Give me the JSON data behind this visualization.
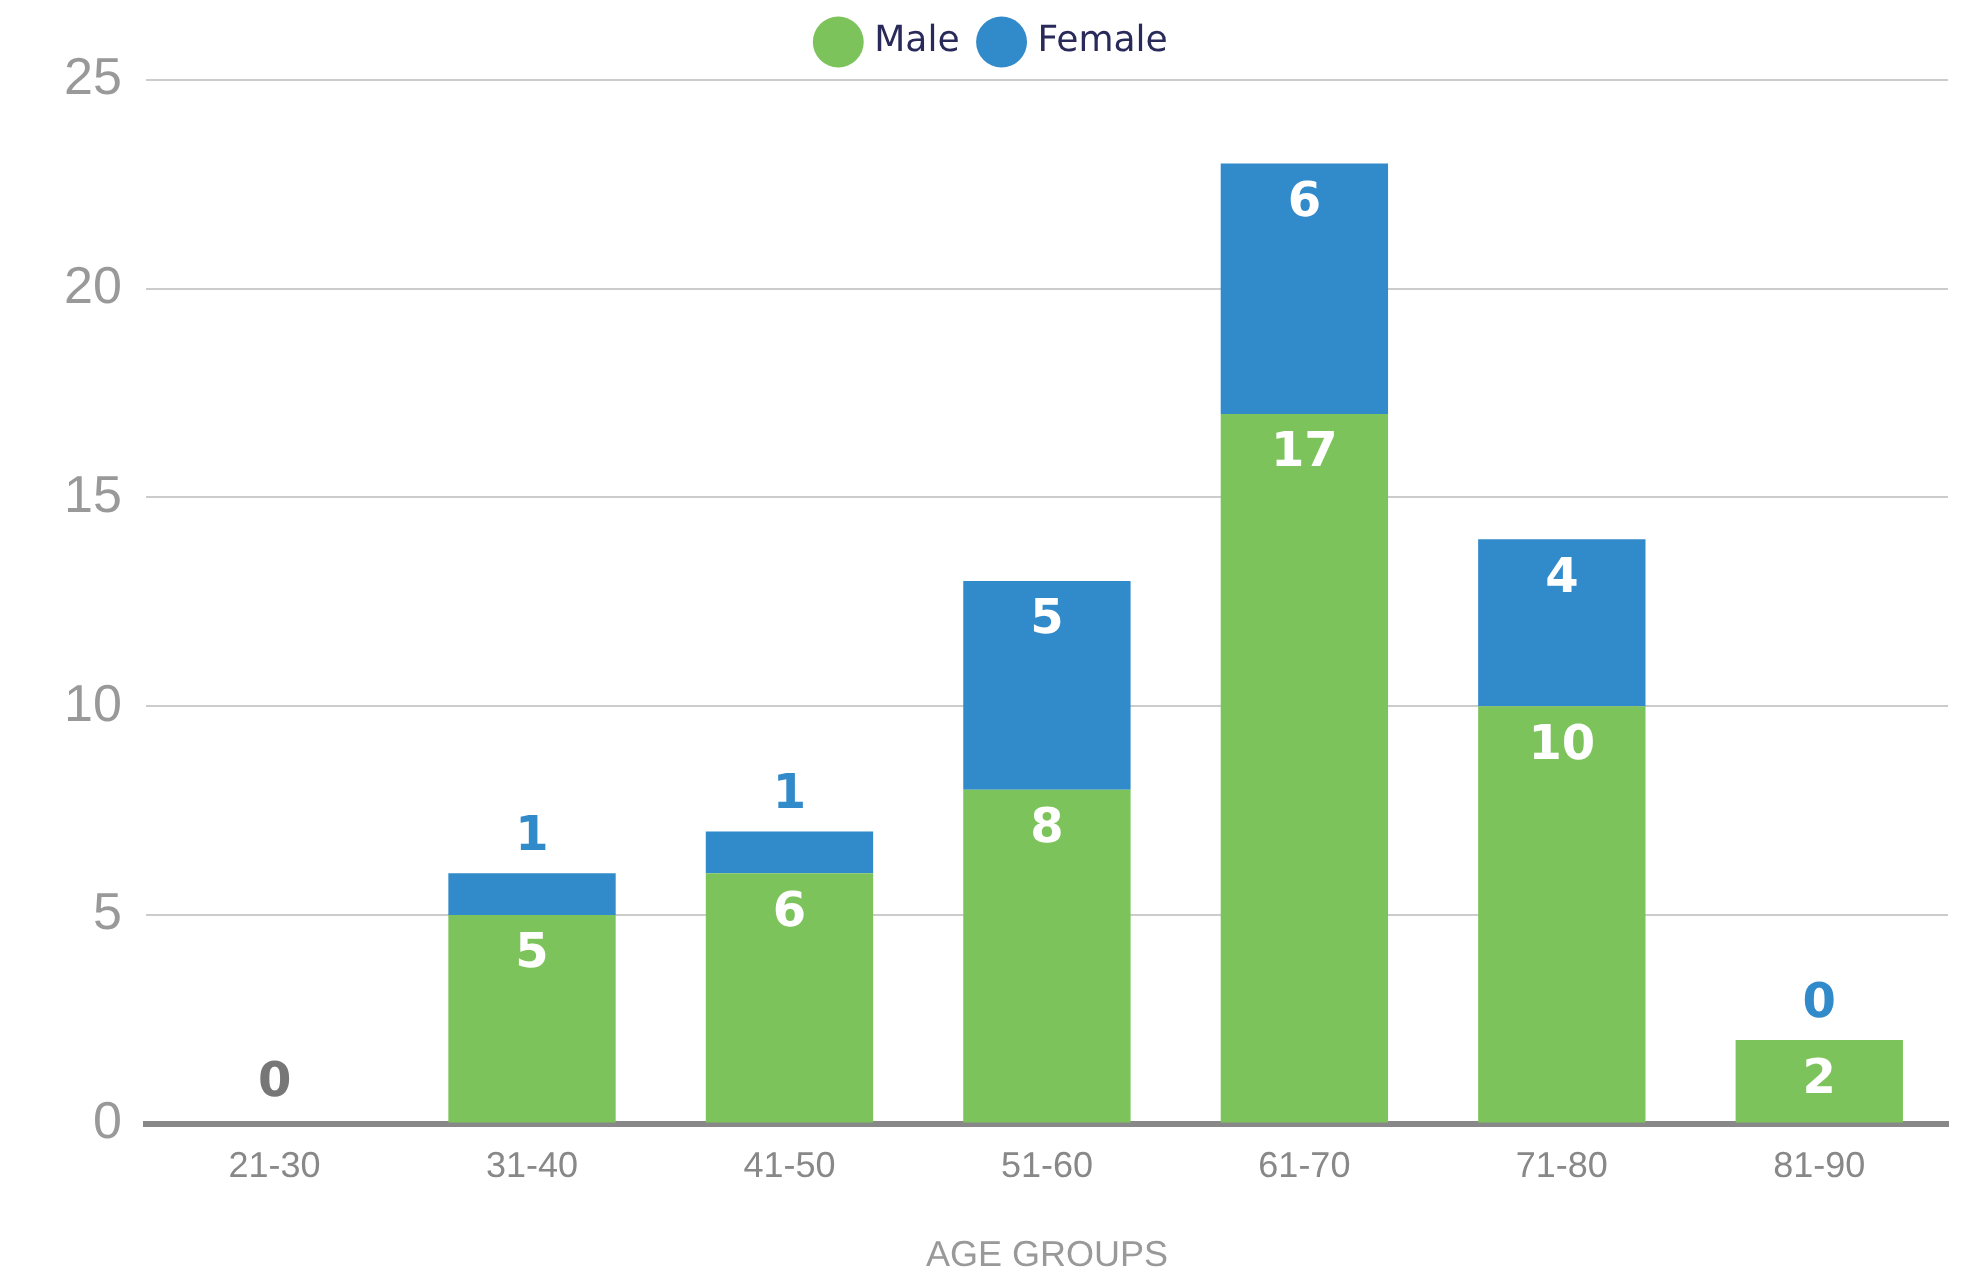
{
  "chart_data": {
    "type": "bar",
    "stacked": true,
    "xlabel": "AGE GROUPS",
    "categories": [
      "21-30",
      "31-40",
      "41-50",
      "51-60",
      "61-70",
      "71-80",
      "81-90"
    ],
    "series": [
      {
        "name": "Male",
        "color": "#7dc35b",
        "values": [
          0,
          5,
          6,
          8,
          17,
          10,
          2
        ],
        "value_labels": [
          "0",
          "5",
          "6",
          "8",
          "17",
          "10",
          "2"
        ]
      },
      {
        "name": "Female",
        "color": "#318ac9",
        "values": [
          0,
          1,
          1,
          5,
          6,
          4,
          0
        ],
        "value_labels": [
          null,
          "1",
          "1",
          "5",
          "6",
          "4",
          "0"
        ]
      }
    ],
    "ylim": [
      0,
      25
    ],
    "yticks": [
      0,
      5,
      10,
      15,
      20,
      25
    ],
    "grid": "y",
    "legend": "top"
  }
}
